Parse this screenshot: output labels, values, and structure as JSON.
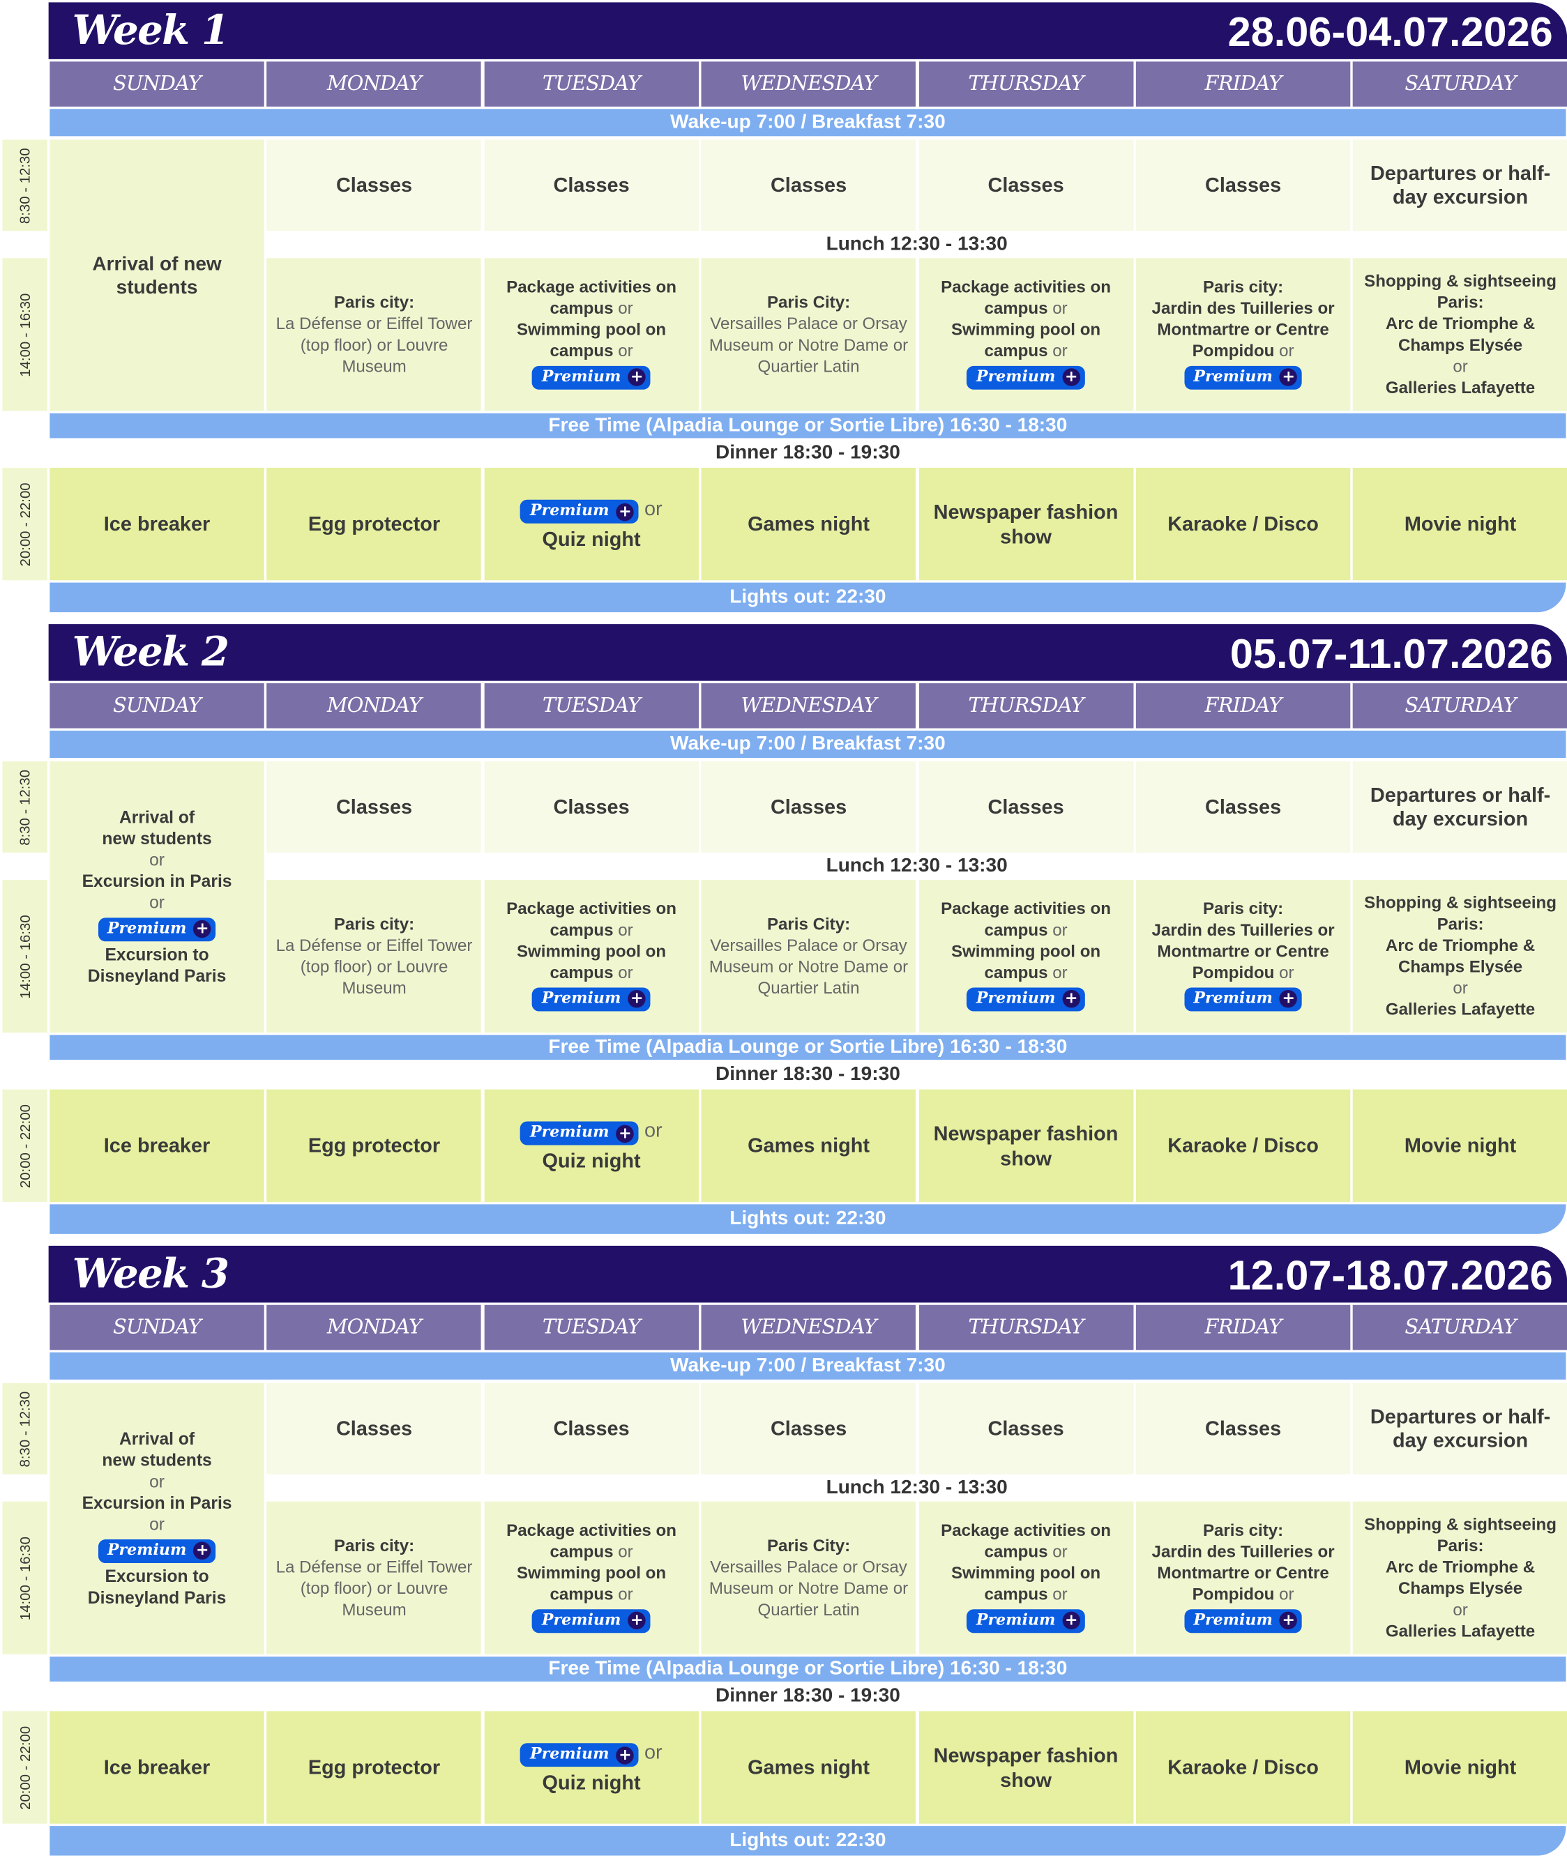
{
  "colors": {
    "header": "#221068",
    "day_header": "#7b6fa8",
    "bar": "#7eaef0",
    "morning": "#f6fae6",
    "afternoon": "#f0f7d0",
    "evening": "#e6f0a0",
    "premium": "#0a5ce0"
  },
  "time_labels": {
    "morning": "8:30 - 12:30",
    "afternoon": "14:00 - 16:30",
    "evening": "20:00 - 22:00"
  },
  "days": [
    "SUNDAY",
    "MONDAY",
    "TUESDAY",
    "WEDNESDAY",
    "THURSDAY",
    "FRIDAY",
    "SATURDAY"
  ],
  "bars": {
    "wake": "Wake-up 7:00 /  Breakfast 7:30",
    "lunch": "Lunch 12:30 - 13:30",
    "free": "Free Time (Alpadia Lounge or Sortie Libre) 16:30 - 18:30",
    "dinner": "Dinner 18:30 - 19:30",
    "lights": "Lights out: 22:30"
  },
  "premium": {
    "label": "Premium",
    "icon": "plus-circle-icon"
  },
  "weeks": [
    {
      "title": "Week 1",
      "dates": "28.06-04.07.2026",
      "sunday": {
        "big": true,
        "lines": [
          [
            {
              "t": "Arrival of new students",
              "k": "b"
            }
          ]
        ]
      }
    },
    {
      "title": "Week 2",
      "dates": "05.07-11.07.2026",
      "sunday": {
        "big": false,
        "lines": [
          [
            {
              "t": "Arrival of",
              "k": "b"
            }
          ],
          [
            {
              "t": "new students",
              "k": "b"
            }
          ],
          [
            {
              "t": "or",
              "k": "l"
            }
          ],
          [
            {
              "t": "Excursion in Paris",
              "k": "b"
            }
          ],
          [
            {
              "t": "or",
              "k": "l"
            }
          ],
          [
            {
              "t": "Premium",
              "k": "p"
            }
          ],
          [
            {
              "t": "Excursion to Disneyland Paris",
              "k": "b"
            }
          ]
        ]
      }
    },
    {
      "title": "Week 3",
      "dates": "12.07-18.07.2026",
      "sunday": {
        "big": false,
        "lines": [
          [
            {
              "t": "Arrival of",
              "k": "b"
            }
          ],
          [
            {
              "t": "new students",
              "k": "b"
            }
          ],
          [
            {
              "t": "or",
              "k": "l"
            }
          ],
          [
            {
              "t": "Excursion in Paris",
              "k": "b"
            }
          ],
          [
            {
              "t": "or",
              "k": "l"
            }
          ],
          [
            {
              "t": "Premium",
              "k": "p"
            }
          ],
          [
            {
              "t": "Excursion to Disneyland Paris",
              "k": "b"
            }
          ]
        ]
      }
    }
  ],
  "morning": [
    "Classes",
    "Classes",
    "Classes",
    "Classes",
    "Classes",
    "Departures or half-day excursion"
  ],
  "afternoon": [
    [
      [
        {
          "t": "Paris city:",
          "k": "b"
        }
      ],
      [
        {
          "t": "La Défense or Eiffel Tower (top floor) or Louvre Museum",
          "k": "l"
        }
      ]
    ],
    [
      [
        {
          "t": "Package activities on campus",
          "k": "b"
        },
        {
          "t": " or",
          "k": "l"
        }
      ],
      [
        {
          "t": "Swimming pool on campus",
          "k": "b"
        },
        {
          "t": " or",
          "k": "l"
        }
      ],
      [
        {
          "t": "Premium",
          "k": "p"
        }
      ]
    ],
    [
      [
        {
          "t": "Paris City:",
          "k": "b"
        }
      ],
      [
        {
          "t": "Versailles Palace or Orsay Museum or Notre Dame or Quartier Latin",
          "k": "l"
        }
      ]
    ],
    [
      [
        {
          "t": "Package activities on campus",
          "k": "b"
        },
        {
          "t": " or",
          "k": "l"
        }
      ],
      [
        {
          "t": "Swimming pool on campus",
          "k": "b"
        },
        {
          "t": " or",
          "k": "l"
        }
      ],
      [
        {
          "t": "Premium",
          "k": "p"
        }
      ]
    ],
    [
      [
        {
          "t": "Paris city:",
          "k": "b"
        }
      ],
      [
        {
          "t": "Jardin des Tuilleries or Montmartre or Centre Pompidou",
          "k": "b"
        },
        {
          "t": " or",
          "k": "l"
        }
      ],
      [
        {
          "t": "Premium",
          "k": "p"
        }
      ]
    ],
    [
      [
        {
          "t": "Shopping & sightseeing Paris:",
          "k": "b"
        }
      ],
      [
        {
          "t": "Arc de Triomphe & Champs Elysée",
          "k": "b"
        }
      ],
      [
        {
          "t": "or",
          "k": "l"
        }
      ],
      [
        {
          "t": "Galleries Lafayette",
          "k": "b"
        }
      ]
    ]
  ],
  "evening": [
    [
      [
        {
          "t": "Ice breaker",
          "k": "b"
        }
      ]
    ],
    [
      [
        {
          "t": "Egg protector",
          "k": "b"
        }
      ]
    ],
    [
      [
        {
          "t": "Premium",
          "k": "p"
        },
        {
          "t": " or",
          "k": "l"
        }
      ],
      [
        {
          "t": "Quiz night",
          "k": "b"
        }
      ]
    ],
    [
      [
        {
          "t": "Games night",
          "k": "b"
        }
      ]
    ],
    [
      [
        {
          "t": "Newspaper fashion show",
          "k": "b"
        }
      ]
    ],
    [
      [
        {
          "t": "Karaoke / Disco",
          "k": "b"
        }
      ]
    ],
    [
      [
        {
          "t": "Movie night",
          "k": "b"
        }
      ]
    ]
  ]
}
